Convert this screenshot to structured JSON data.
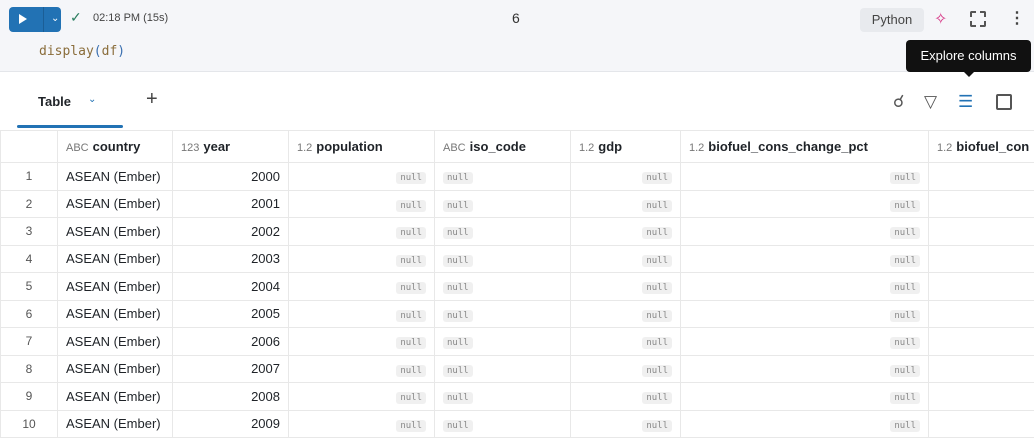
{
  "cell": {
    "run_label": "Run",
    "status_time": "02:18 PM (15s)",
    "cell_number": "6",
    "language": "Python",
    "code_fn": "display",
    "code_arg": "df"
  },
  "tooltip": "Explore columns",
  "tabs": [
    {
      "label": "Table"
    }
  ],
  "icons": {
    "run": "play-icon",
    "status": "check-icon",
    "assistant": "sparkle-icon",
    "expand": "expand-icon",
    "more": "kebab-icon",
    "search": "search-icon",
    "filter": "filter-icon",
    "explore": "columns-icon",
    "panel": "panel-icon"
  },
  "accent": "#2272b4",
  "table": {
    "columns": [
      {
        "type": "ABC",
        "name": "country"
      },
      {
        "type": "123",
        "name": "year"
      },
      {
        "type": "1.2",
        "name": "population"
      },
      {
        "type": "ABC",
        "name": "iso_code"
      },
      {
        "type": "1.2",
        "name": "gdp"
      },
      {
        "type": "1.2",
        "name": "biofuel_cons_change_pct"
      },
      {
        "type": "1.2",
        "name": "biofuel_con"
      }
    ],
    "null_label": "null",
    "rows": [
      {
        "n": "1",
        "country": "ASEAN (Ember)",
        "year": "2000"
      },
      {
        "n": "2",
        "country": "ASEAN (Ember)",
        "year": "2001"
      },
      {
        "n": "3",
        "country": "ASEAN (Ember)",
        "year": "2002"
      },
      {
        "n": "4",
        "country": "ASEAN (Ember)",
        "year": "2003"
      },
      {
        "n": "5",
        "country": "ASEAN (Ember)",
        "year": "2004"
      },
      {
        "n": "6",
        "country": "ASEAN (Ember)",
        "year": "2005"
      },
      {
        "n": "7",
        "country": "ASEAN (Ember)",
        "year": "2006"
      },
      {
        "n": "8",
        "country": "ASEAN (Ember)",
        "year": "2007"
      },
      {
        "n": "9",
        "country": "ASEAN (Ember)",
        "year": "2008"
      },
      {
        "n": "10",
        "country": "ASEAN (Ember)",
        "year": "2009"
      }
    ]
  }
}
